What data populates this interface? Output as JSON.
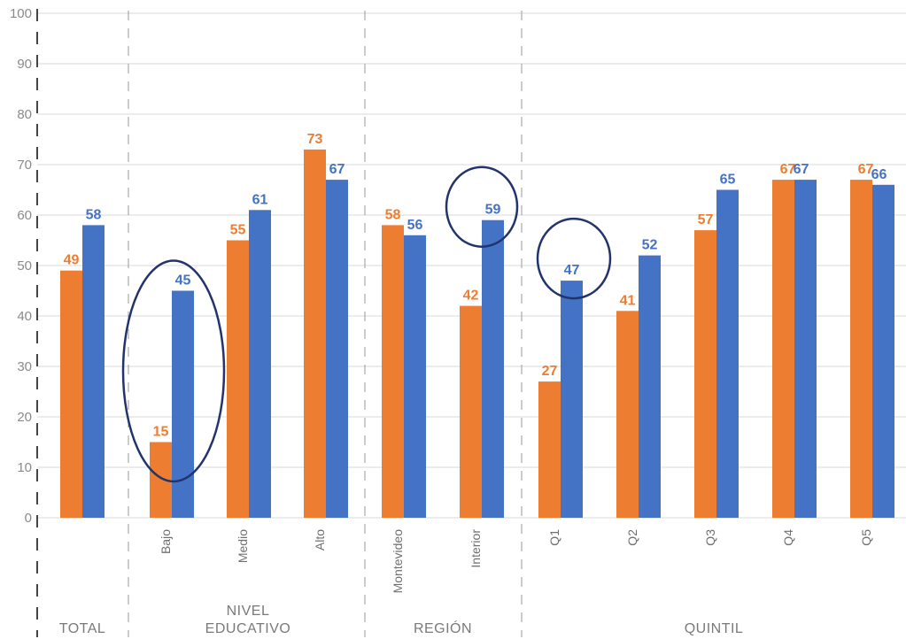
{
  "chart_data": {
    "type": "bar",
    "ylim": [
      0,
      100
    ],
    "yticks": [
      0,
      10,
      20,
      30,
      40,
      50,
      60,
      70,
      80,
      90,
      100
    ],
    "categories": [
      "",
      "Bajo",
      "Medio",
      "Alto",
      "Montevideo",
      "Interior",
      "Q1",
      "Q2",
      "Q3",
      "Q4",
      "Q5"
    ],
    "series": [
      {
        "color": "#ED7D31",
        "values": [
          49,
          15,
          55,
          73,
          58,
          42,
          27,
          41,
          57,
          67,
          67
        ]
      },
      {
        "color": "#4472C4",
        "values": [
          58,
          45,
          61,
          67,
          56,
          59,
          47,
          52,
          65,
          67,
          66
        ]
      }
    ],
    "groups": [
      {
        "lines": [
          "TOTAL"
        ],
        "categories": [
          0
        ]
      },
      {
        "lines": [
          "NIVEL",
          "EDUCATIVO"
        ],
        "categories": [
          1,
          2,
          3
        ]
      },
      {
        "lines": [
          "REGIÓN"
        ],
        "categories": [
          4,
          5
        ]
      },
      {
        "lines": [
          "QUINTIL"
        ],
        "categories": [
          6,
          7,
          8,
          9,
          10
        ]
      }
    ],
    "highlighted": [
      {
        "category": "Bajo",
        "series": 1
      },
      {
        "category": "Interior",
        "series": 1
      },
      {
        "category": "Q1",
        "series": 1
      }
    ],
    "grid": true,
    "highlight_color": "#22346B",
    "grid_color": "#d9d9d9",
    "separator_color": "#999999"
  }
}
